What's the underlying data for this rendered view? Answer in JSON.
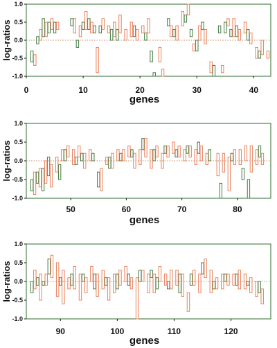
{
  "chart_data": [
    {
      "type": "bar",
      "panel": 1,
      "xlabel": "genes",
      "ylabel": "log-ratios",
      "xlim": [
        0,
        43
      ],
      "ylim": [
        -1.0,
        1.0
      ],
      "x_ticks": [
        "0",
        "10",
        "20",
        "30",
        "40"
      ],
      "y_ticks": [
        "-1.0",
        "-0.5",
        "0.0",
        "0.5",
        "1.0"
      ],
      "reference_line": 0.0,
      "series": [
        {
          "name": "green",
          "values": [
            [
              1,
              -0.3,
              -0.6
            ],
            [
              2,
              -0.1,
              0.1
            ],
            [
              3,
              0.1,
              0.6
            ],
            [
              4,
              0.2,
              0.5
            ],
            [
              5,
              0.2,
              0.5
            ],
            [
              8,
              0.4,
              0.6
            ],
            [
              9,
              -0.2,
              0.0
            ],
            [
              10,
              0.3,
              0.5
            ],
            [
              11,
              0.3,
              0.6
            ],
            [
              12,
              0.2,
              0.4
            ],
            [
              13,
              0.2,
              0.4
            ],
            [
              15,
              0.0,
              0.3
            ],
            [
              16,
              0.0,
              0.3
            ],
            [
              19,
              0.1,
              0.4
            ],
            [
              21,
              0.0,
              0.2
            ],
            [
              22,
              -0.3,
              -0.6
            ],
            [
              22.5,
              -0.9,
              -1.0
            ],
            [
              25,
              0.4,
              0.6
            ],
            [
              26,
              0.1,
              0.3
            ],
            [
              28,
              0.5,
              0.7
            ],
            [
              29,
              0.1,
              0.3
            ],
            [
              30,
              0.0,
              -0.3
            ],
            [
              31,
              0.3,
              0.5
            ],
            [
              33,
              -0.7,
              -1.0
            ],
            [
              34,
              0.2,
              0.4
            ],
            [
              35,
              0.2,
              0.5
            ],
            [
              36,
              0.1,
              0.3
            ],
            [
              37,
              0.1,
              0.4
            ],
            [
              39,
              0.0,
              0.3
            ],
            [
              41,
              -0.3,
              -0.5
            ]
          ]
        },
        {
          "name": "orange",
          "values": [
            [
              1.5,
              -0.4,
              -0.7
            ],
            [
              2.5,
              0.0,
              0.3
            ],
            [
              3.5,
              0.1,
              0.5
            ],
            [
              4.5,
              0.3,
              0.6
            ],
            [
              5.5,
              0.3,
              0.5
            ],
            [
              8.5,
              0.2,
              0.6
            ],
            [
              9.5,
              0.1,
              0.4
            ],
            [
              10.5,
              0.3,
              0.8
            ],
            [
              11.5,
              0.2,
              0.5
            ],
            [
              12.5,
              -0.2,
              -0.9
            ],
            [
              13.5,
              0.3,
              0.6
            ],
            [
              14.5,
              0.2,
              0.4
            ],
            [
              15.5,
              0.1,
              0.5
            ],
            [
              16.5,
              0.2,
              0.7
            ],
            [
              17.5,
              0.0,
              0.3
            ],
            [
              18.5,
              0.1,
              0.5
            ],
            [
              19.5,
              0.0,
              0.3
            ],
            [
              20.5,
              0.2,
              0.4
            ],
            [
              21.5,
              0.2,
              0.6
            ],
            [
              23.5,
              -0.2,
              -0.6
            ],
            [
              24,
              -0.8,
              -1.0
            ],
            [
              25.5,
              0.1,
              0.4
            ],
            [
              26.5,
              0.0,
              0.4
            ],
            [
              27.5,
              0.4,
              0.8
            ],
            [
              28.5,
              0.7,
              1.0
            ],
            [
              29.5,
              -0.1,
              -0.3
            ],
            [
              30.5,
              0.0,
              0.4
            ],
            [
              31.5,
              -0.1,
              0.3
            ],
            [
              32.5,
              -0.6,
              -0.9
            ],
            [
              34.5,
              -0.7,
              -0.9
            ],
            [
              35.5,
              0.4,
              0.6
            ],
            [
              36.5,
              0.1,
              0.6
            ],
            [
              37.5,
              0.0,
              0.3
            ],
            [
              38.5,
              0.2,
              0.5
            ],
            [
              39.5,
              -0.1,
              0.2
            ],
            [
              40.5,
              -0.2,
              -0.5
            ],
            [
              41.5,
              -0.4,
              0.0
            ],
            [
              42.5,
              -0.3,
              -0.5
            ]
          ]
        }
      ]
    },
    {
      "type": "bar",
      "panel": 2,
      "xlabel": "genes",
      "ylabel": "log-ratios",
      "xlim": [
        42,
        86
      ],
      "ylim": [
        -1.0,
        1.0
      ],
      "x_ticks": [
        "50",
        "60",
        "70",
        "80"
      ],
      "y_ticks": [
        "-1.0",
        "-0.5",
        "0.0",
        "0.5",
        "1.0"
      ],
      "reference_line": 0.0,
      "series": [
        {
          "name": "green",
          "values": [
            [
              43,
              -0.5,
              -0.8
            ],
            [
              44,
              -0.3,
              -0.6
            ],
            [
              45,
              -0.2,
              -0.8
            ],
            [
              46,
              -0.4,
              0.1
            ],
            [
              48,
              -0.1,
              -0.5
            ],
            [
              49,
              0.0,
              0.3
            ],
            [
              51,
              0.1,
              -0.1
            ],
            [
              52,
              0.2,
              0.0
            ],
            [
              54,
              0.2,
              0.0
            ],
            [
              55,
              -0.3,
              -0.7
            ],
            [
              57,
              -0.2,
              0.1
            ],
            [
              59,
              0.0,
              0.2
            ],
            [
              61,
              0.1,
              0.3
            ],
            [
              63,
              0.6,
              0.3
            ],
            [
              65,
              0.0,
              0.3
            ],
            [
              67,
              0.2,
              0.4
            ],
            [
              69,
              0.1,
              0.3
            ],
            [
              71,
              0.2,
              0.4
            ],
            [
              73,
              0.2,
              0.5
            ],
            [
              75,
              0.0,
              0.3
            ],
            [
              77,
              -0.6,
              -1.0
            ],
            [
              79,
              0.0,
              0.2
            ],
            [
              81,
              -0.2,
              -0.5
            ],
            [
              82,
              -0.5,
              -1.0
            ],
            [
              84,
              0.1,
              0.4
            ]
          ]
        },
        {
          "name": "orange",
          "values": [
            [
              43.5,
              -0.3,
              -0.9
            ],
            [
              44.5,
              -0.2,
              -0.7
            ],
            [
              45.5,
              0.0,
              -0.6
            ],
            [
              46.5,
              -0.1,
              -0.7
            ],
            [
              47.5,
              0.1,
              -0.3
            ],
            [
              48.5,
              0.3,
              0.0
            ],
            [
              49.5,
              0.4,
              0.1
            ],
            [
              50.5,
              0.3,
              -0.1
            ],
            [
              51.5,
              0.4,
              0.1
            ],
            [
              52.5,
              0.2,
              -0.2
            ],
            [
              53.5,
              0.3,
              0.0
            ],
            [
              55.5,
              -0.2,
              -0.8
            ],
            [
              56.5,
              0.1,
              -0.1
            ],
            [
              57.5,
              0.2,
              -0.2
            ],
            [
              58.5,
              0.3,
              0.0
            ],
            [
              59.5,
              0.3,
              0.0
            ],
            [
              60.5,
              0.4,
              0.1
            ],
            [
              61.5,
              0.2,
              -0.2
            ],
            [
              62.5,
              0.3,
              -0.1
            ],
            [
              63.5,
              0.6,
              0.1
            ],
            [
              64.5,
              0.3,
              -0.2
            ],
            [
              65.5,
              0.4,
              0.1
            ],
            [
              66.5,
              0.2,
              -0.2
            ],
            [
              67.5,
              0.4,
              0.1
            ],
            [
              68.5,
              0.5,
              0.2
            ],
            [
              69.5,
              0.4,
              0.1
            ],
            [
              70.5,
              0.3,
              0.0
            ],
            [
              71.5,
              0.4,
              0.1
            ],
            [
              72.5,
              0.3,
              -0.1
            ],
            [
              73.5,
              0.4,
              0.0
            ],
            [
              74.5,
              0.2,
              -0.1
            ],
            [
              76.5,
              0.2,
              -0.4
            ],
            [
              77.5,
              0.2,
              -0.3
            ],
            [
              78.5,
              0.1,
              -0.8
            ],
            [
              79.5,
              0.3,
              -0.1
            ],
            [
              80.5,
              0.3,
              -0.1
            ],
            [
              81.5,
              0.4,
              0.0
            ],
            [
              82.5,
              0.4,
              -0.3
            ],
            [
              83.5,
              0.3,
              -0.1
            ],
            [
              84.5,
              0.2,
              -0.1
            ]
          ]
        }
      ]
    },
    {
      "type": "bar",
      "panel": 3,
      "xlabel": "genes",
      "ylabel": "log-ratios",
      "xlim": [
        84,
        127
      ],
      "ylim": [
        -1.0,
        1.0
      ],
      "x_ticks": [
        "90",
        "100",
        "110",
        "120"
      ],
      "y_ticks": [
        "-1.0",
        "-0.5",
        "0.0",
        "0.5",
        "1.0"
      ],
      "reference_line": 0.0,
      "series": [
        {
          "name": "green",
          "values": [
            [
              85,
              -0.3,
              0.0
            ],
            [
              86,
              0.1,
              -0.1
            ],
            [
              87,
              0.0,
              -0.1
            ],
            [
              88,
              0.6,
              0.2
            ],
            [
              90,
              0.1,
              -0.1
            ],
            [
              92,
              0.2,
              -0.1
            ],
            [
              94,
              0.0,
              0.2
            ],
            [
              96,
              0.2,
              -0.2
            ],
            [
              98,
              0.1,
              -0.1
            ],
            [
              100,
              0.2,
              -0.2
            ],
            [
              102,
              0.2,
              -0.1
            ],
            [
              104,
              0.0,
              0.3
            ],
            [
              106,
              0.1,
              0.3
            ],
            [
              107,
              0.1,
              -0.2
            ],
            [
              109,
              0.0,
              -0.2
            ],
            [
              111,
              0.2,
              -0.3
            ],
            [
              113,
              0.2,
              -0.1
            ],
            [
              115,
              0.5,
              0.2
            ],
            [
              117,
              0.0,
              -0.2
            ],
            [
              119,
              0.0,
              0.2
            ],
            [
              121,
              0.2,
              -0.1
            ],
            [
              123,
              0.0,
              -0.1
            ],
            [
              125,
              0.0,
              -0.3
            ]
          ]
        },
        {
          "name": "orange",
          "values": [
            [
              85.5,
              0.3,
              -0.2
            ],
            [
              86.5,
              0.2,
              -0.5
            ],
            [
              87.5,
              0.2,
              -0.1
            ],
            [
              88.5,
              0.7,
              0.1
            ],
            [
              89.5,
              0.5,
              -0.4
            ],
            [
              90.5,
              0.3,
              -0.6
            ],
            [
              91.5,
              0.1,
              -0.2
            ],
            [
              92.5,
              0.4,
              -0.2
            ],
            [
              93.5,
              0.2,
              -0.5
            ],
            [
              94.5,
              0.1,
              -0.3
            ],
            [
              95.5,
              0.4,
              0.0
            ],
            [
              96.5,
              0.2,
              -0.4
            ],
            [
              97.5,
              0.3,
              -0.2
            ],
            [
              98.5,
              0.1,
              -0.5
            ],
            [
              99.5,
              0.2,
              -0.3
            ],
            [
              100.5,
              0.3,
              -0.1
            ],
            [
              101.5,
              0.4,
              0.0
            ],
            [
              102.5,
              0.1,
              -0.2
            ],
            [
              103.5,
              0.1,
              -1.0
            ],
            [
              104.5,
              0.3,
              0.0
            ],
            [
              105.5,
              0.2,
              -0.3
            ],
            [
              106.5,
              0.2,
              -0.3
            ],
            [
              107.5,
              0.4,
              0.0
            ],
            [
              108.5,
              0.2,
              -0.1
            ],
            [
              109.5,
              0.3,
              -0.2
            ],
            [
              110.5,
              0.3,
              -0.1
            ],
            [
              111.5,
              0.2,
              -0.4
            ],
            [
              112.5,
              -0.3,
              -0.8
            ],
            [
              113.5,
              0.3,
              -0.1
            ],
            [
              114.5,
              0.2,
              -0.3
            ],
            [
              115.5,
              0.6,
              0.1
            ],
            [
              116.5,
              0.3,
              -0.3
            ],
            [
              117.5,
              0.1,
              -0.2
            ],
            [
              118.5,
              0.2,
              -0.2
            ],
            [
              119.5,
              0.2,
              -0.1
            ],
            [
              120.5,
              0.2,
              -0.1
            ],
            [
              121.5,
              0.3,
              -0.2
            ],
            [
              122.5,
              0.2,
              -0.2
            ],
            [
              123.5,
              0.1,
              -0.3
            ],
            [
              124.5,
              0.0,
              -0.4
            ],
            [
              125.5,
              -0.2,
              -0.6
            ]
          ]
        }
      ]
    }
  ],
  "colors": {
    "frame": "#2e6b2e",
    "green_bar": "#3f7a3f",
    "orange_bar": "#e8805a",
    "reference_line": "#cc8a5e",
    "text": "#111111"
  }
}
